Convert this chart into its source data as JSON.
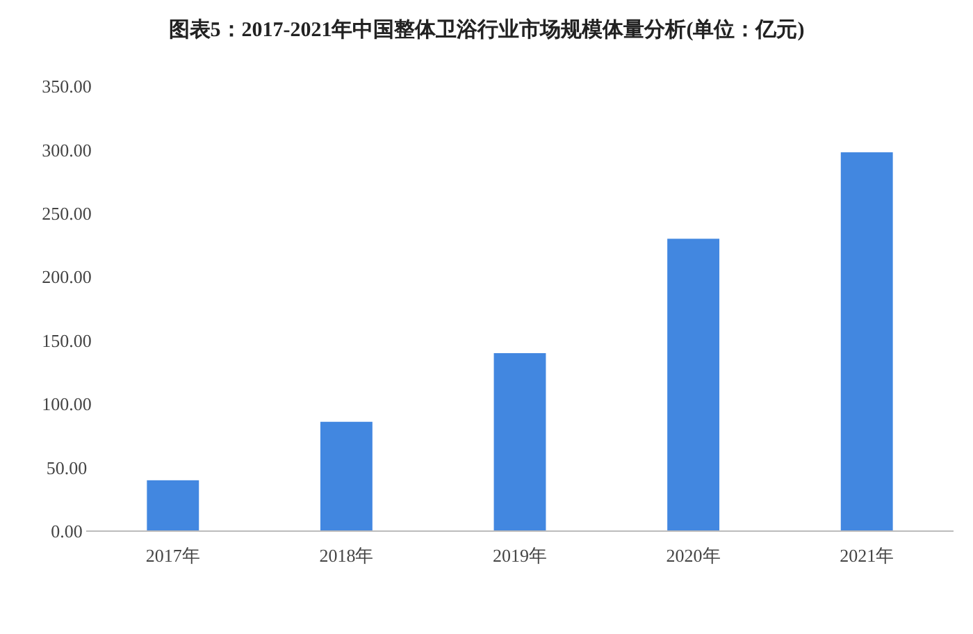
{
  "chart_data": {
    "type": "bar",
    "title": "图表5：2017-2021年中国整体卫浴行业市场规模体量分析(单位：亿元)",
    "categories": [
      "2017年",
      "2018年",
      "2019年",
      "2020年",
      "2021年"
    ],
    "values": [
      40,
      86,
      140,
      230,
      298
    ],
    "color": "#4287e0",
    "ylim": [
      0,
      350
    ],
    "yticks": [
      {
        "value": 0,
        "label": "0.00"
      },
      {
        "value": 50,
        "label": "50.00"
      },
      {
        "value": 100,
        "label": "100.00"
      },
      {
        "value": 150,
        "label": "150.00"
      },
      {
        "value": 200,
        "label": "200.00"
      },
      {
        "value": 250,
        "label": "250.00"
      },
      {
        "value": 300,
        "label": "300.00"
      },
      {
        "value": 350,
        "label": "350.00"
      }
    ],
    "grid": false
  }
}
